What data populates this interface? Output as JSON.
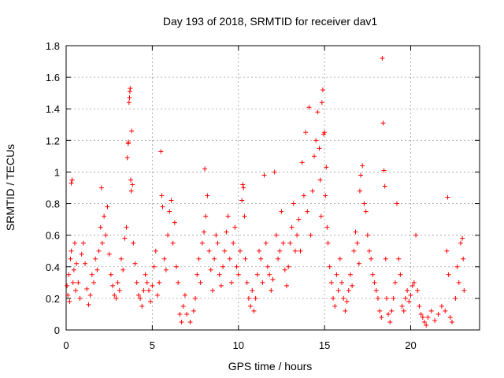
{
  "chart_data": {
    "type": "scatter",
    "title": "Day 193 of 2018, SRMTID for receiver dav1",
    "xlabel": "GPS time / hours",
    "ylabel": "SRMTID / TECUs",
    "xlim": [
      0,
      24
    ],
    "ylim": [
      0,
      1.8
    ],
    "xticks": [
      0,
      5,
      10,
      15,
      20
    ],
    "yticks": [
      0,
      0.2,
      0.4,
      0.6,
      0.8,
      1,
      1.2,
      1.4,
      1.6,
      1.8
    ],
    "xtick_labels": [
      "0",
      "5",
      "10",
      "15",
      "20"
    ],
    "ytick_labels": [
      "0",
      "0.2",
      "0.4",
      "0.6",
      "0.8",
      "1",
      "1.2",
      "1.4",
      "1.6",
      "1.8"
    ],
    "grid": true,
    "marker": "+",
    "color": "#ff0000",
    "series": [
      {
        "name": "dav1",
        "points": [
          [
            0.05,
            0.28
          ],
          [
            0.1,
            0.22
          ],
          [
            0.15,
            0.35
          ],
          [
            0.2,
            0.18
          ],
          [
            0.25,
            0.45
          ],
          [
            0.3,
            0.5
          ],
          [
            0.3,
            0.93
          ],
          [
            0.35,
            0.95
          ],
          [
            0.4,
            0.3
          ],
          [
            0.45,
            0.38
          ],
          [
            0.5,
            0.55
          ],
          [
            0.55,
            0.25
          ],
          [
            0.6,
            0.42
          ],
          [
            0.7,
            0.3
          ],
          [
            0.8,
            0.2
          ],
          [
            0.9,
            0.48
          ],
          [
            1.0,
            0.55
          ],
          [
            1.1,
            0.42
          ],
          [
            1.2,
            0.26
          ],
          [
            1.3,
            0.16
          ],
          [
            1.4,
            0.22
          ],
          [
            1.5,
            0.35
          ],
          [
            1.6,
            0.3
          ],
          [
            1.7,
            0.45
          ],
          [
            1.8,
            0.38
          ],
          [
            1.9,
            0.5
          ],
          [
            2.0,
            0.65
          ],
          [
            2.05,
            0.9
          ],
          [
            2.1,
            0.55
          ],
          [
            2.2,
            0.72
          ],
          [
            2.3,
            0.6
          ],
          [
            2.4,
            0.78
          ],
          [
            2.5,
            0.48
          ],
          [
            2.6,
            0.35
          ],
          [
            2.7,
            0.28
          ],
          [
            2.8,
            0.22
          ],
          [
            2.9,
            0.2
          ],
          [
            3.0,
            0.3
          ],
          [
            3.1,
            0.25
          ],
          [
            3.2,
            0.45
          ],
          [
            3.3,
            0.38
          ],
          [
            3.4,
            0.58
          ],
          [
            3.5,
            0.65
          ],
          [
            3.55,
            1.09
          ],
          [
            3.6,
            1.18
          ],
          [
            3.62,
            1.19
          ],
          [
            3.65,
            1.44
          ],
          [
            3.68,
            1.47
          ],
          [
            3.7,
            1.51
          ],
          [
            3.72,
            1.53
          ],
          [
            3.75,
            0.95
          ],
          [
            3.78,
            0.88
          ],
          [
            3.8,
            1.26
          ],
          [
            3.85,
            0.92
          ],
          [
            3.9,
            0.55
          ],
          [
            4.0,
            0.42
          ],
          [
            4.1,
            0.3
          ],
          [
            4.2,
            0.22
          ],
          [
            4.3,
            0.2
          ],
          [
            4.4,
            0.15
          ],
          [
            4.5,
            0.25
          ],
          [
            4.6,
            0.35
          ],
          [
            4.7,
            0.3
          ],
          [
            4.8,
            0.25
          ],
          [
            4.9,
            0.18
          ],
          [
            5.0,
            0.28
          ],
          [
            5.1,
            0.4
          ],
          [
            5.2,
            0.5
          ],
          [
            5.3,
            0.22
          ],
          [
            5.4,
            0.3
          ],
          [
            5.5,
            1.13
          ],
          [
            5.55,
            0.85
          ],
          [
            5.6,
            0.78
          ],
          [
            5.7,
            0.45
          ],
          [
            5.8,
            0.38
          ],
          [
            5.9,
            0.6
          ],
          [
            6.0,
            0.75
          ],
          [
            6.1,
            0.82
          ],
          [
            6.2,
            0.55
          ],
          [
            6.3,
            0.68
          ],
          [
            6.4,
            0.4
          ],
          [
            6.5,
            0.3
          ],
          [
            6.6,
            0.1
          ],
          [
            6.7,
            0.05
          ],
          [
            6.8,
            0.15
          ],
          [
            6.9,
            0.22
          ],
          [
            7.0,
            0.1
          ],
          [
            7.2,
            0.05
          ],
          [
            7.4,
            0.12
          ],
          [
            7.5,
            0.2
          ],
          [
            7.6,
            0.35
          ],
          [
            7.7,
            0.45
          ],
          [
            7.8,
            0.3
          ],
          [
            7.9,
            0.55
          ],
          [
            8.0,
            0.62
          ],
          [
            8.05,
            1.02
          ],
          [
            8.1,
            0.72
          ],
          [
            8.2,
            0.85
          ],
          [
            8.3,
            0.5
          ],
          [
            8.4,
            0.38
          ],
          [
            8.5,
            0.25
          ],
          [
            8.6,
            0.45
          ],
          [
            8.7,
            0.6
          ],
          [
            8.8,
            0.55
          ],
          [
            8.9,
            0.35
          ],
          [
            9.0,
            0.28
          ],
          [
            9.1,
            0.4
          ],
          [
            9.2,
            0.5
          ],
          [
            9.3,
            0.62
          ],
          [
            9.4,
            0.72
          ],
          [
            9.5,
            0.45
          ],
          [
            9.6,
            0.3
          ],
          [
            9.7,
            0.55
          ],
          [
            9.8,
            0.65
          ],
          [
            9.9,
            0.4
          ],
          [
            10.0,
            0.35
          ],
          [
            10.1,
            0.5
          ],
          [
            10.2,
            0.82
          ],
          [
            10.25,
            0.92
          ],
          [
            10.3,
            0.9
          ],
          [
            10.35,
            0.72
          ],
          [
            10.4,
            0.45
          ],
          [
            10.5,
            0.3
          ],
          [
            10.6,
            0.2
          ],
          [
            10.7,
            0.15
          ],
          [
            10.8,
            0.25
          ],
          [
            10.9,
            0.12
          ],
          [
            11.0,
            0.2
          ],
          [
            11.1,
            0.35
          ],
          [
            11.2,
            0.5
          ],
          [
            11.3,
            0.45
          ],
          [
            11.4,
            0.3
          ],
          [
            11.5,
            0.98
          ],
          [
            11.6,
            0.55
          ],
          [
            11.7,
            0.4
          ],
          [
            11.8,
            0.35
          ],
          [
            11.9,
            0.25
          ],
          [
            12.0,
            0.32
          ],
          [
            12.1,
            1.0
          ],
          [
            12.2,
            0.6
          ],
          [
            12.3,
            0.45
          ],
          [
            12.4,
            0.5
          ],
          [
            12.5,
            0.75
          ],
          [
            12.6,
            0.55
          ],
          [
            12.7,
            0.38
          ],
          [
            12.8,
            0.28
          ],
          [
            12.9,
            0.4
          ],
          [
            13.0,
            0.55
          ],
          [
            13.1,
            0.65
          ],
          [
            13.2,
            0.8
          ],
          [
            13.3,
            0.5
          ],
          [
            13.4,
            0.6
          ],
          [
            13.5,
            0.7
          ],
          [
            13.6,
            0.5
          ],
          [
            13.7,
            1.06
          ],
          [
            13.8,
            0.85
          ],
          [
            13.9,
            1.25
          ],
          [
            14.0,
            0.75
          ],
          [
            14.1,
            1.41
          ],
          [
            14.2,
            0.6
          ],
          [
            14.3,
            0.88
          ],
          [
            14.4,
            1.1
          ],
          [
            14.5,
            1.2
          ],
          [
            14.6,
            1.38
          ],
          [
            14.7,
            1.15
          ],
          [
            14.75,
            0.95
          ],
          [
            14.8,
            0.72
          ],
          [
            14.85,
            1.44
          ],
          [
            14.9,
            1.52
          ],
          [
            14.95,
            1.24
          ],
          [
            15.0,
            1.25
          ],
          [
            15.05,
            0.85
          ],
          [
            15.1,
            1.03
          ],
          [
            15.15,
            0.65
          ],
          [
            15.2,
            0.55
          ],
          [
            15.3,
            0.4
          ],
          [
            15.4,
            0.3
          ],
          [
            15.5,
            0.2
          ],
          [
            15.6,
            0.15
          ],
          [
            15.7,
            0.35
          ],
          [
            15.8,
            0.25
          ],
          [
            15.9,
            0.45
          ],
          [
            16.0,
            0.3
          ],
          [
            16.1,
            0.2
          ],
          [
            16.2,
            0.12
          ],
          [
            16.3,
            0.18
          ],
          [
            16.4,
            0.25
          ],
          [
            16.5,
            0.35
          ],
          [
            16.6,
            0.28
          ],
          [
            16.7,
            0.5
          ],
          [
            16.8,
            0.62
          ],
          [
            16.9,
            0.55
          ],
          [
            17.0,
            0.42
          ],
          [
            17.05,
            0.88
          ],
          [
            17.1,
            0.98
          ],
          [
            17.2,
            1.04
          ],
          [
            17.3,
            0.8
          ],
          [
            17.4,
            0.75
          ],
          [
            17.5,
            0.6
          ],
          [
            17.6,
            0.5
          ],
          [
            17.7,
            0.45
          ],
          [
            17.8,
            0.35
          ],
          [
            17.9,
            0.3
          ],
          [
            18.0,
            0.25
          ],
          [
            18.1,
            0.2
          ],
          [
            18.2,
            0.12
          ],
          [
            18.3,
            0.08
          ],
          [
            18.35,
            1.72
          ],
          [
            18.4,
            1.31
          ],
          [
            18.45,
            1.01
          ],
          [
            18.5,
            0.91
          ],
          [
            18.55,
            0.45
          ],
          [
            18.6,
            0.2
          ],
          [
            18.7,
            0.1
          ],
          [
            18.8,
            0.05
          ],
          [
            18.9,
            0.12
          ],
          [
            19.0,
            0.2
          ],
          [
            19.1,
            0.3
          ],
          [
            19.2,
            0.8
          ],
          [
            19.3,
            0.45
          ],
          [
            19.4,
            0.35
          ],
          [
            19.5,
            0.15
          ],
          [
            19.6,
            0.12
          ],
          [
            19.7,
            0.2
          ],
          [
            19.8,
            0.25
          ],
          [
            19.9,
            0.18
          ],
          [
            20.0,
            0.22
          ],
          [
            20.1,
            0.28
          ],
          [
            20.2,
            0.3
          ],
          [
            20.3,
            0.6
          ],
          [
            20.4,
            0.25
          ],
          [
            20.5,
            0.15
          ],
          [
            20.6,
            0.1
          ],
          [
            20.7,
            0.08
          ],
          [
            20.8,
            0.05
          ],
          [
            20.9,
            0.03
          ],
          [
            21.0,
            0.08
          ],
          [
            21.2,
            0.12
          ],
          [
            21.4,
            0.06
          ],
          [
            21.6,
            0.1
          ],
          [
            21.8,
            0.15
          ],
          [
            22.0,
            0.12
          ],
          [
            22.1,
            0.5
          ],
          [
            22.15,
            0.84
          ],
          [
            22.2,
            0.35
          ],
          [
            22.3,
            0.08
          ],
          [
            22.4,
            0.05
          ],
          [
            22.6,
            0.2
          ],
          [
            22.7,
            0.4
          ],
          [
            22.8,
            0.3
          ],
          [
            22.9,
            0.55
          ],
          [
            23.0,
            0.58
          ],
          [
            23.05,
            0.45
          ],
          [
            23.1,
            0.25
          ]
        ]
      }
    ]
  }
}
